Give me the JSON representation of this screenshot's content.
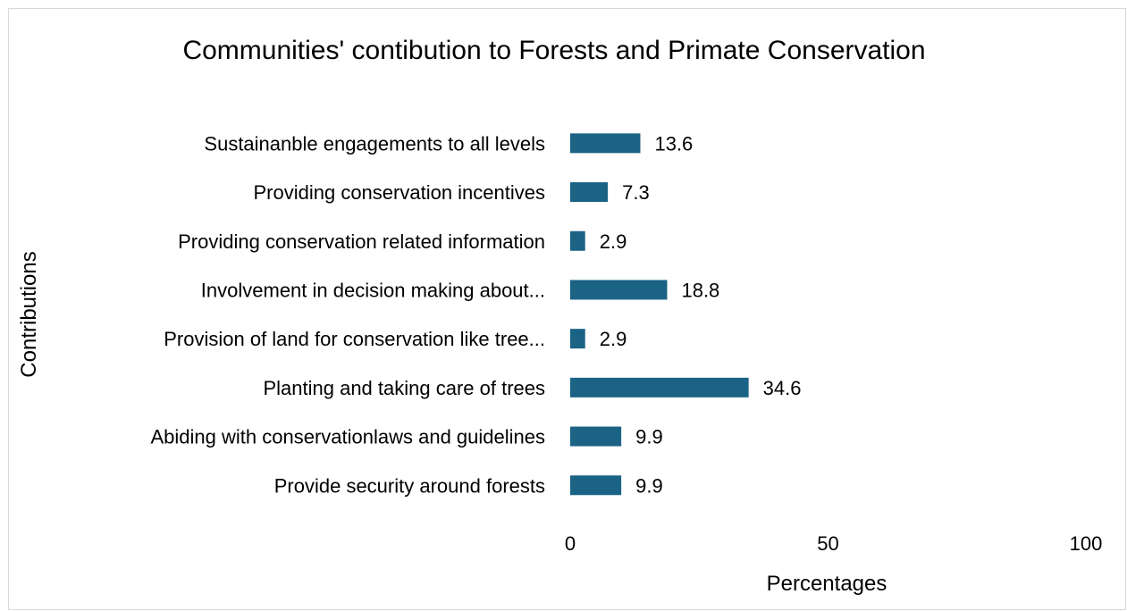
{
  "chart_data": {
    "type": "bar",
    "orientation": "horizontal",
    "title": "Communities' contibution to Forests and Primate Conservation",
    "xlabel": "Percentages",
    "ylabel": "Contributions",
    "xlim": [
      0,
      100
    ],
    "xticks": [
      0,
      50,
      100
    ],
    "grid": false,
    "legend": "none",
    "bar_color": "#1b6385",
    "categories": [
      "Sustainanble engagements to all levels",
      "Providing conservation incentives",
      "Providing conservation related information",
      "Involvement in decision making about...",
      "Provision of land for conservation like tree...",
      "Planting and taking care of trees",
      "Abiding with conservationlaws and guidelines",
      "Provide security around forests"
    ],
    "values": [
      13.6,
      7.3,
      2.9,
      18.8,
      2.9,
      34.6,
      9.9,
      9.9
    ]
  }
}
